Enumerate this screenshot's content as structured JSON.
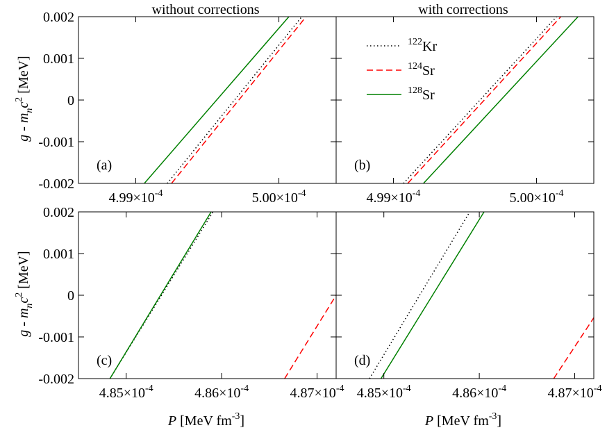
{
  "column_titles": [
    "without corrections",
    "with corrections"
  ],
  "ylabel": "g - m_n c^2 [MeV]",
  "xlabel": "P [MeV fm^-3]",
  "series_styles": [
    {
      "name": "122Kr",
      "mass": "122",
      "element": "Kr",
      "color": "#000000",
      "dash": "1.5,3.5"
    },
    {
      "name": "124Sr",
      "mass": "124",
      "element": "Sr",
      "color": "#ff0000",
      "dash": "9,5"
    },
    {
      "name": "128Sr",
      "mass": "128",
      "element": "Sr",
      "color": "#008000",
      "dash": ""
    }
  ],
  "chart_data": [
    {
      "type": "line",
      "panel_label": "(a)",
      "xlim": [
        0.0004986,
        0.0005004
      ],
      "ylim": [
        -0.002,
        0.002
      ],
      "xticks": [
        0.000499,
        0.0005
      ],
      "xtick_labels": [
        [
          "4.99",
          "-4"
        ],
        [
          "5.00",
          "-4"
        ]
      ],
      "yticks": [
        -0.002,
        -0.001,
        0,
        0.001,
        0.002
      ],
      "ytick_labels": [
        "-0.002",
        "-0.001",
        "0",
        "0.001",
        "0.002"
      ],
      "legend": false,
      "series": [
        {
          "name": "122Kr",
          "x": [
            0.00049922,
            0.00050016
          ],
          "y": [
            -0.002,
            0.002
          ]
        },
        {
          "name": "124Sr",
          "x": [
            0.00049925,
            0.00050019
          ],
          "y": [
            -0.002,
            0.002
          ]
        },
        {
          "name": "128Sr",
          "x": [
            0.00049906,
            0.00050007
          ],
          "y": [
            -0.002,
            0.002
          ]
        }
      ]
    },
    {
      "type": "line",
      "panel_label": "(b)",
      "xlim": [
        0.0004986,
        0.0005004
      ],
      "ylim": [
        -0.002,
        0.002
      ],
      "xticks": [
        0.000499,
        0.0005
      ],
      "xtick_labels": [
        [
          "4.99",
          "-4"
        ],
        [
          "5.00",
          "-4"
        ]
      ],
      "yticks": [
        -0.002,
        -0.001,
        0,
        0.001,
        0.002
      ],
      "ytick_labels": [],
      "legend": true,
      "series": [
        {
          "name": "122Kr",
          "x": [
            0.00049907,
            0.00050014
          ],
          "y": [
            -0.002,
            0.002
          ]
        },
        {
          "name": "124Sr",
          "x": [
            0.0004991,
            0.00050017
          ],
          "y": [
            -0.002,
            0.002
          ]
        },
        {
          "name": "128Sr",
          "x": [
            0.00049921,
            0.00050029
          ],
          "y": [
            -0.002,
            0.002
          ]
        }
      ]
    },
    {
      "type": "line",
      "panel_label": "(c)",
      "xlim": [
        0.0004845,
        0.0004872
      ],
      "ylim": [
        -0.002,
        0.002
      ],
      "xticks": [
        0.000485,
        0.000486,
        0.000487
      ],
      "xtick_labels": [
        [
          "4.85",
          "-4"
        ],
        [
          "4.86",
          "-4"
        ],
        [
          "4.87",
          "-4"
        ]
      ],
      "yticks": [
        -0.002,
        -0.001,
        0,
        0.001,
        0.002
      ],
      "ytick_labels": [
        "-0.002",
        "-0.001",
        "0",
        "0.001",
        "0.002"
      ],
      "legend": false,
      "series": [
        {
          "name": "122Kr",
          "x": [
            0.00048483,
            0.00048591
          ],
          "y": [
            -0.002,
            0.002
          ]
        },
        {
          "name": "124Sr",
          "x": [
            0.00048666,
            0.0004872
          ],
          "y": [
            -0.002,
            0.0
          ]
        },
        {
          "name": "128Sr",
          "x": [
            0.00048483,
            0.00048589
          ],
          "y": [
            -0.002,
            0.002
          ]
        }
      ]
    },
    {
      "type": "line",
      "panel_label": "(d)",
      "xlim": [
        0.0004845,
        0.0004872
      ],
      "ylim": [
        -0.002,
        0.002
      ],
      "xticks": [
        0.000485,
        0.000486,
        0.000487
      ],
      "xtick_labels": [
        [
          "4.85",
          "-4"
        ],
        [
          "4.86",
          "-4"
        ],
        [
          "4.87",
          "-4"
        ]
      ],
      "yticks": [
        -0.002,
        -0.001,
        0,
        0.001,
        0.002
      ],
      "ytick_labels": [],
      "legend": false,
      "series": [
        {
          "name": "122Kr",
          "x": [
            0.00048485,
            0.0004859
          ],
          "y": [
            -0.002,
            0.002
          ]
        },
        {
          "name": "124Sr",
          "x": [
            0.00048678,
            0.0004872
          ],
          "y": [
            -0.002,
            -0.00054
          ]
        },
        {
          "name": "128Sr",
          "x": [
            0.00048497,
            0.00048605
          ],
          "y": [
            -0.002,
            0.002
          ]
        }
      ]
    }
  ]
}
